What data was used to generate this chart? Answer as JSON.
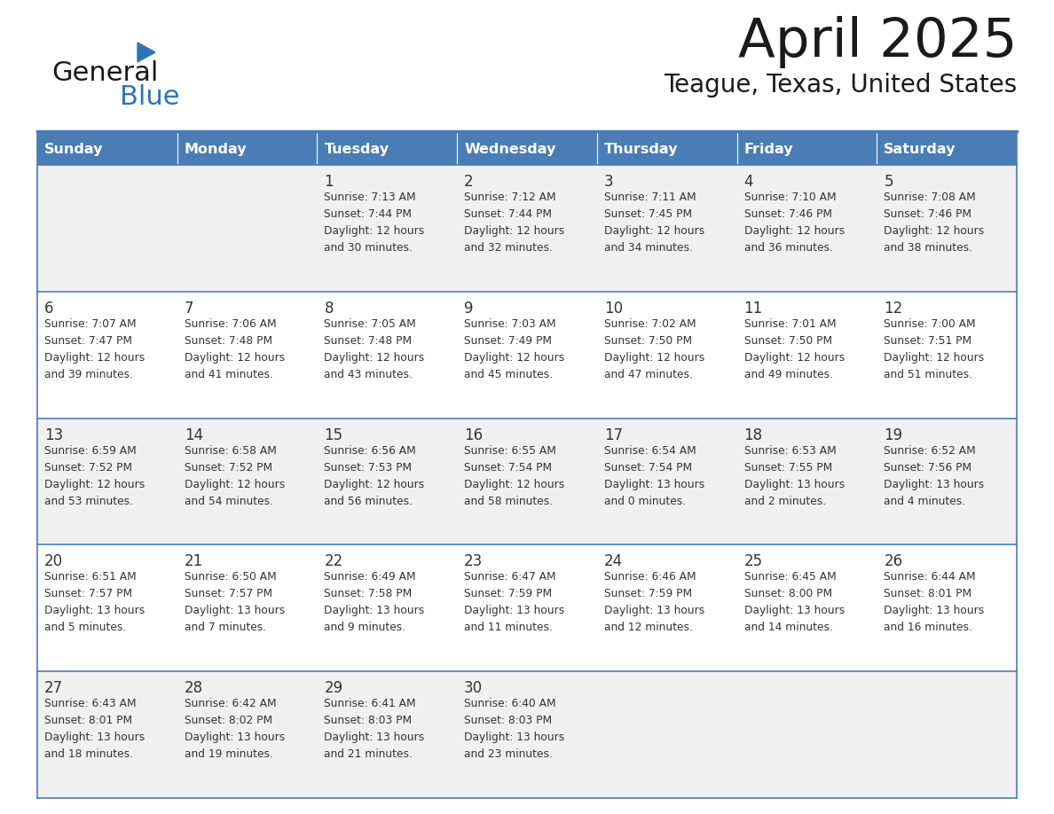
{
  "title": "April 2025",
  "subtitle": "Teague, Texas, United States",
  "header_bg_color": "#4A7DB5",
  "header_text_color": "#FFFFFF",
  "day_names": [
    "Sunday",
    "Monday",
    "Tuesday",
    "Wednesday",
    "Thursday",
    "Friday",
    "Saturday"
  ],
  "title_color": "#1a1a1a",
  "subtitle_color": "#1a1a1a",
  "cell_bg_even": "#f0f0f0",
  "cell_bg_odd": "#ffffff",
  "border_color": "#4A7DB5",
  "text_color": "#333333",
  "logo_black": "#1a1a1a",
  "logo_blue": "#2E75B6",
  "weeks": [
    [
      {
        "day": "",
        "sunrise": "",
        "sunset": "",
        "daylight": ""
      },
      {
        "day": "",
        "sunrise": "",
        "sunset": "",
        "daylight": ""
      },
      {
        "day": "1",
        "sunrise": "7:13 AM",
        "sunset": "7:44 PM",
        "daylight": "12 hours and 30 minutes."
      },
      {
        "day": "2",
        "sunrise": "7:12 AM",
        "sunset": "7:44 PM",
        "daylight": "12 hours and 32 minutes."
      },
      {
        "day": "3",
        "sunrise": "7:11 AM",
        "sunset": "7:45 PM",
        "daylight": "12 hours and 34 minutes."
      },
      {
        "day": "4",
        "sunrise": "7:10 AM",
        "sunset": "7:46 PM",
        "daylight": "12 hours and 36 minutes."
      },
      {
        "day": "5",
        "sunrise": "7:08 AM",
        "sunset": "7:46 PM",
        "daylight": "12 hours and 38 minutes."
      }
    ],
    [
      {
        "day": "6",
        "sunrise": "7:07 AM",
        "sunset": "7:47 PM",
        "daylight": "12 hours and 39 minutes."
      },
      {
        "day": "7",
        "sunrise": "7:06 AM",
        "sunset": "7:48 PM",
        "daylight": "12 hours and 41 minutes."
      },
      {
        "day": "8",
        "sunrise": "7:05 AM",
        "sunset": "7:48 PM",
        "daylight": "12 hours and 43 minutes."
      },
      {
        "day": "9",
        "sunrise": "7:03 AM",
        "sunset": "7:49 PM",
        "daylight": "12 hours and 45 minutes."
      },
      {
        "day": "10",
        "sunrise": "7:02 AM",
        "sunset": "7:50 PM",
        "daylight": "12 hours and 47 minutes."
      },
      {
        "day": "11",
        "sunrise": "7:01 AM",
        "sunset": "7:50 PM",
        "daylight": "12 hours and 49 minutes."
      },
      {
        "day": "12",
        "sunrise": "7:00 AM",
        "sunset": "7:51 PM",
        "daylight": "12 hours and 51 minutes."
      }
    ],
    [
      {
        "day": "13",
        "sunrise": "6:59 AM",
        "sunset": "7:52 PM",
        "daylight": "12 hours and 53 minutes."
      },
      {
        "day": "14",
        "sunrise": "6:58 AM",
        "sunset": "7:52 PM",
        "daylight": "12 hours and 54 minutes."
      },
      {
        "day": "15",
        "sunrise": "6:56 AM",
        "sunset": "7:53 PM",
        "daylight": "12 hours and 56 minutes."
      },
      {
        "day": "16",
        "sunrise": "6:55 AM",
        "sunset": "7:54 PM",
        "daylight": "12 hours and 58 minutes."
      },
      {
        "day": "17",
        "sunrise": "6:54 AM",
        "sunset": "7:54 PM",
        "daylight": "13 hours and 0 minutes."
      },
      {
        "day": "18",
        "sunrise": "6:53 AM",
        "sunset": "7:55 PM",
        "daylight": "13 hours and 2 minutes."
      },
      {
        "day": "19",
        "sunrise": "6:52 AM",
        "sunset": "7:56 PM",
        "daylight": "13 hours and 4 minutes."
      }
    ],
    [
      {
        "day": "20",
        "sunrise": "6:51 AM",
        "sunset": "7:57 PM",
        "daylight": "13 hours and 5 minutes."
      },
      {
        "day": "21",
        "sunrise": "6:50 AM",
        "sunset": "7:57 PM",
        "daylight": "13 hours and 7 minutes."
      },
      {
        "day": "22",
        "sunrise": "6:49 AM",
        "sunset": "7:58 PM",
        "daylight": "13 hours and 9 minutes."
      },
      {
        "day": "23",
        "sunrise": "6:47 AM",
        "sunset": "7:59 PM",
        "daylight": "13 hours and 11 minutes."
      },
      {
        "day": "24",
        "sunrise": "6:46 AM",
        "sunset": "7:59 PM",
        "daylight": "13 hours and 12 minutes."
      },
      {
        "day": "25",
        "sunrise": "6:45 AM",
        "sunset": "8:00 PM",
        "daylight": "13 hours and 14 minutes."
      },
      {
        "day": "26",
        "sunrise": "6:44 AM",
        "sunset": "8:01 PM",
        "daylight": "13 hours and 16 minutes."
      }
    ],
    [
      {
        "day": "27",
        "sunrise": "6:43 AM",
        "sunset": "8:01 PM",
        "daylight": "13 hours and 18 minutes."
      },
      {
        "day": "28",
        "sunrise": "6:42 AM",
        "sunset": "8:02 PM",
        "daylight": "13 hours and 19 minutes."
      },
      {
        "day": "29",
        "sunrise": "6:41 AM",
        "sunset": "8:03 PM",
        "daylight": "13 hours and 21 minutes."
      },
      {
        "day": "30",
        "sunrise": "6:40 AM",
        "sunset": "8:03 PM",
        "daylight": "13 hours and 23 minutes."
      },
      {
        "day": "",
        "sunrise": "",
        "sunset": "",
        "daylight": ""
      },
      {
        "day": "",
        "sunrise": "",
        "sunset": "",
        "daylight": ""
      },
      {
        "day": "",
        "sunrise": "",
        "sunset": "",
        "daylight": ""
      }
    ]
  ]
}
